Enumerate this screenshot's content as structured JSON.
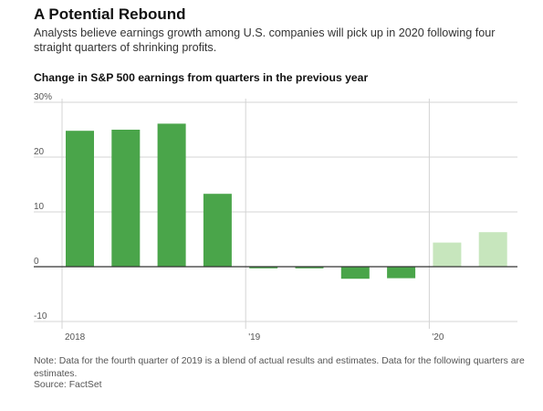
{
  "header": {
    "title": "A Potential Rebound",
    "subtitle": "Analysts believe earnings growth among U.S. companies will pick up in 2020 following four straight quarters of shrinking profits."
  },
  "chart_heading": "Change in S&P 500 earnings from quarters in the previous year",
  "footer": {
    "note": "Note: Data for the fourth quarter of 2019 is a blend of actual results and estimates. Data for the following quarters are estimates.",
    "source": "Source: FactSet"
  },
  "colors": {
    "actual": "#4aa54a",
    "estimate": "#c7e6bd",
    "grid": "#d4d4d4",
    "zero_line": "#333333"
  },
  "chart_data": {
    "type": "bar",
    "title": "Change in S&P 500 earnings from quarters in the previous year",
    "categories": [
      "Q1 2018",
      "Q2 2018",
      "Q3 2018",
      "Q4 2018",
      "Q1 2019",
      "Q2 2019",
      "Q3 2019",
      "Q4 2019",
      "Q1 2020",
      "Q2 2020"
    ],
    "values": [
      24.8,
      25.0,
      26.1,
      13.3,
      -0.3,
      -0.3,
      -2.2,
      -2.1,
      4.4,
      6.3
    ],
    "estimate": [
      false,
      false,
      false,
      false,
      false,
      false,
      false,
      false,
      true,
      true
    ],
    "y_ticks": [
      "30%",
      "20",
      "10",
      "0",
      "-10"
    ],
    "y_tick_values": [
      30,
      20,
      10,
      0,
      -10
    ],
    "x_tick_labels": [
      "2018",
      "'19",
      "'20"
    ],
    "x_tick_indices": [
      0,
      4,
      8
    ],
    "ylim": [
      -10,
      30
    ],
    "grid": true,
    "legend": "none"
  }
}
